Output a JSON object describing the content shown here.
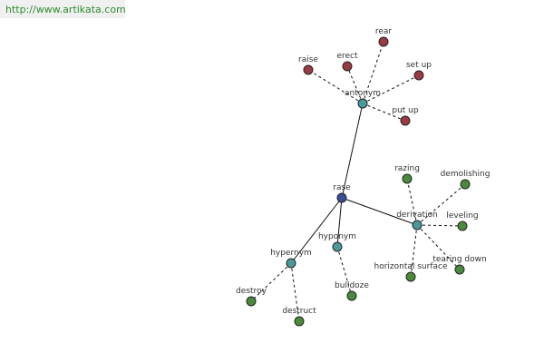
{
  "header": {
    "url": "http://www.artikata.com"
  },
  "nodes": [
    {
      "label": "rase"
    },
    {
      "label": "antonym"
    },
    {
      "label": "raise"
    },
    {
      "label": "erect"
    },
    {
      "label": "rear"
    },
    {
      "label": "set up"
    },
    {
      "label": "put up"
    },
    {
      "label": "derivation"
    },
    {
      "label": "razing"
    },
    {
      "label": "demolishing"
    },
    {
      "label": "leveling"
    },
    {
      "label": "tearing down"
    },
    {
      "label": "horizontal surface"
    },
    {
      "label": "hyponym"
    },
    {
      "label": "bulldoze"
    },
    {
      "label": "hypernym"
    },
    {
      "label": "destroy"
    },
    {
      "label": "destruct"
    }
  ]
}
